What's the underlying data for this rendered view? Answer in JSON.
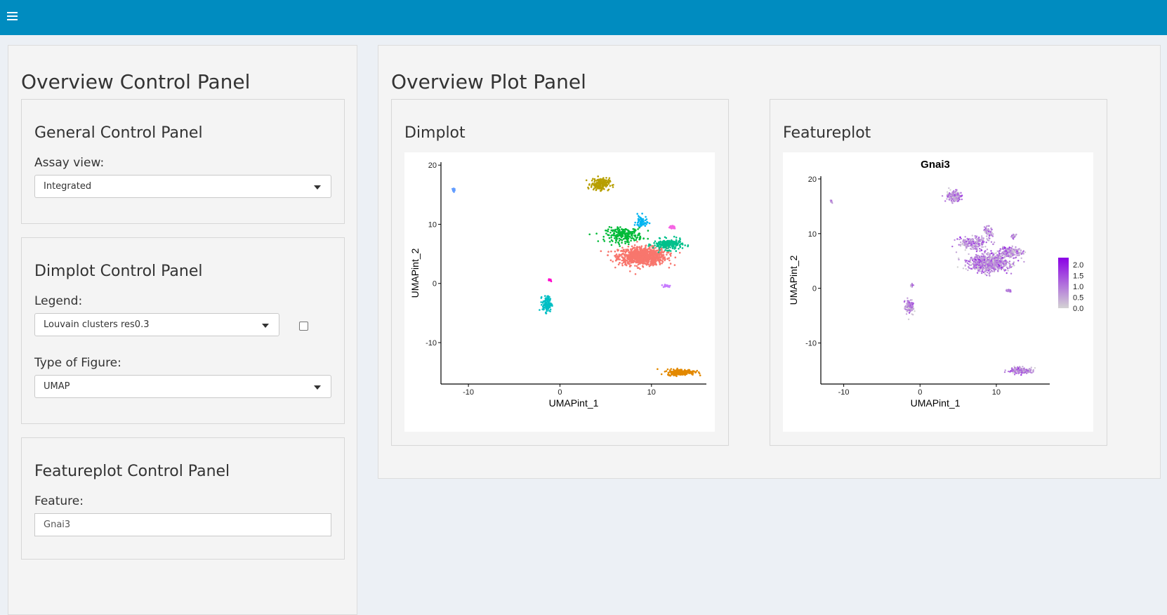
{
  "header": {
    "menu_icon": "hamburger-icon",
    "bar_color": "#008cc0"
  },
  "control_panel": {
    "title": "Overview Control Panel",
    "general": {
      "title": "General Control Panel",
      "assay_label": "Assay view:",
      "assay_value": "Integrated"
    },
    "dimplot": {
      "title": "Dimplot Control Panel",
      "legend_label": "Legend:",
      "legend_value": "Louvain clusters res0.3",
      "legend_checkbox_checked": false,
      "figure_label": "Type of Figure:",
      "figure_value": "UMAP"
    },
    "featureplot": {
      "title": "Featureplot Control Panel",
      "feature_label": "Feature:",
      "feature_value": "Gnai3"
    }
  },
  "plot_panel": {
    "title": "Overview Plot Panel",
    "dimplot_title": "Dimplot",
    "featureplot_title": "Featureplot"
  },
  "chart_data": [
    {
      "type": "scatter",
      "title": "",
      "xlabel": "UMAPint_1",
      "ylabel": "UMAPint_2",
      "xticks": [
        -10,
        0,
        10
      ],
      "yticks": [
        -10,
        0,
        10,
        20
      ],
      "xlim": [
        -13,
        16
      ],
      "ylim": [
        -17,
        20.5
      ],
      "grid": false,
      "legend": "none",
      "clusters": [
        {
          "color": "#f8766d",
          "center": [
            9.0,
            4.6
          ],
          "spread": [
            2.6,
            1.5
          ],
          "n": 900
        },
        {
          "color": "#00ba38",
          "center": [
            7.0,
            8.2
          ],
          "spread": [
            2.0,
            1.2
          ],
          "n": 220
        },
        {
          "color": "#00c08b",
          "center": [
            11.8,
            6.6
          ],
          "spread": [
            1.6,
            0.9
          ],
          "n": 200
        },
        {
          "color": "#00b4f0",
          "center": [
            8.9,
            10.4
          ],
          "spread": [
            0.6,
            1.1
          ],
          "n": 60
        },
        {
          "color": "#b79f00",
          "center": [
            4.4,
            16.8
          ],
          "spread": [
            1.0,
            1.0
          ],
          "n": 180
        },
        {
          "color": "#00bfc4",
          "center": [
            -1.4,
            -3.5
          ],
          "spread": [
            0.5,
            1.3
          ],
          "n": 130
        },
        {
          "color": "#f564e3",
          "center": [
            12.3,
            9.5
          ],
          "spread": [
            0.4,
            0.4
          ],
          "n": 20
        },
        {
          "color": "#ff00cc",
          "center": [
            -1.1,
            0.6
          ],
          "spread": [
            0.25,
            0.25
          ],
          "n": 14
        },
        {
          "color": "#c77cff",
          "center": [
            11.6,
            -0.4
          ],
          "spread": [
            0.5,
            0.25
          ],
          "n": 20
        },
        {
          "color": "#619cff",
          "center": [
            -11.6,
            15.9
          ],
          "spread": [
            0.15,
            0.35
          ],
          "n": 14
        },
        {
          "color": "#e38900",
          "center": [
            13.2,
            -15.0
          ],
          "spread": [
            1.5,
            0.5
          ],
          "n": 220
        }
      ]
    },
    {
      "type": "scatter",
      "title": "Gnai3",
      "xlabel": "UMAPint_1",
      "ylabel": "UMAPint_2",
      "xticks": [
        -10,
        0,
        10
      ],
      "yticks": [
        -10,
        0,
        10,
        20
      ],
      "xlim": [
        -13,
        17
      ],
      "ylim": [
        -17.5,
        20.5
      ],
      "grid": false,
      "legend": "right",
      "colorbar": {
        "min": 0.0,
        "max": 2.0,
        "ticks": [
          "2.0",
          "1.5",
          "1.0",
          "0.5",
          "0.0"
        ],
        "low_color": "#d3d3d3",
        "high_color": "#8a00e6"
      }
    }
  ]
}
